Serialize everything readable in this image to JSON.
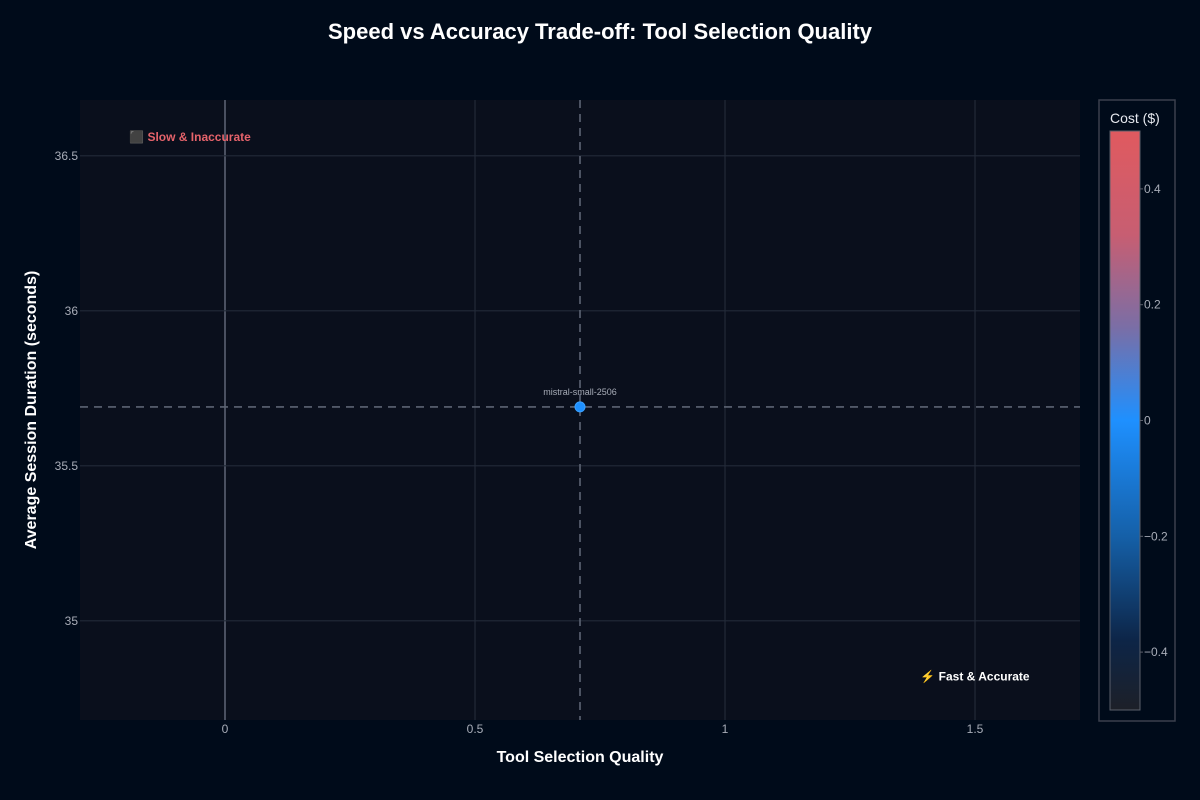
{
  "chart_data": {
    "type": "scatter",
    "title": "Speed vs Accuracy Trade-off: Tool Selection Quality",
    "xlabel": "Tool Selection Quality",
    "ylabel": "Average Session Duration (seconds)",
    "xlim": [
      -0.29,
      1.71
    ],
    "ylim": [
      34.68,
      36.68
    ],
    "xticks": [
      0,
      0.5,
      1,
      1.5
    ],
    "xtick_labels": [
      "0",
      "0.5",
      "1",
      "1.5"
    ],
    "yticks": [
      35,
      35.5,
      36,
      36.5
    ],
    "ytick_labels": [
      "35",
      "35.5",
      "36",
      "36.5"
    ],
    "grid": true,
    "points": [
      {
        "label": "mistral-small-2506",
        "x": 0.71,
        "y": 35.69,
        "cost": 0.0
      }
    ],
    "reference_lines": {
      "x": 0.71,
      "y": 35.69,
      "style": "dashed"
    },
    "zero_line_x": 0,
    "annotations": [
      {
        "text": "⬛ Slow & Inaccurate",
        "x": -0.07,
        "y": 36.56,
        "color": "#e5636b"
      },
      {
        "text": "⚡ Fast & Accurate",
        "x": 1.5,
        "y": 34.82,
        "color": "#ffffff"
      }
    ],
    "colorbar": {
      "title": "Cost ($)",
      "range": [
        -0.5,
        0.5
      ],
      "ticks": [
        0.4,
        0.2,
        0,
        -0.2,
        -0.4
      ],
      "tick_labels": [
        "0.4",
        "0.2",
        "0",
        "−0.2",
        "−0.4"
      ],
      "colors": [
        "#e05a5f",
        "#1e90ff",
        "#0b1a33",
        "#20232b"
      ],
      "placement": "right"
    },
    "colors": {
      "background": "#000b1a",
      "plot_background": "#0a0f1c",
      "grid": "#232a38",
      "point": "#1e90ff"
    }
  }
}
